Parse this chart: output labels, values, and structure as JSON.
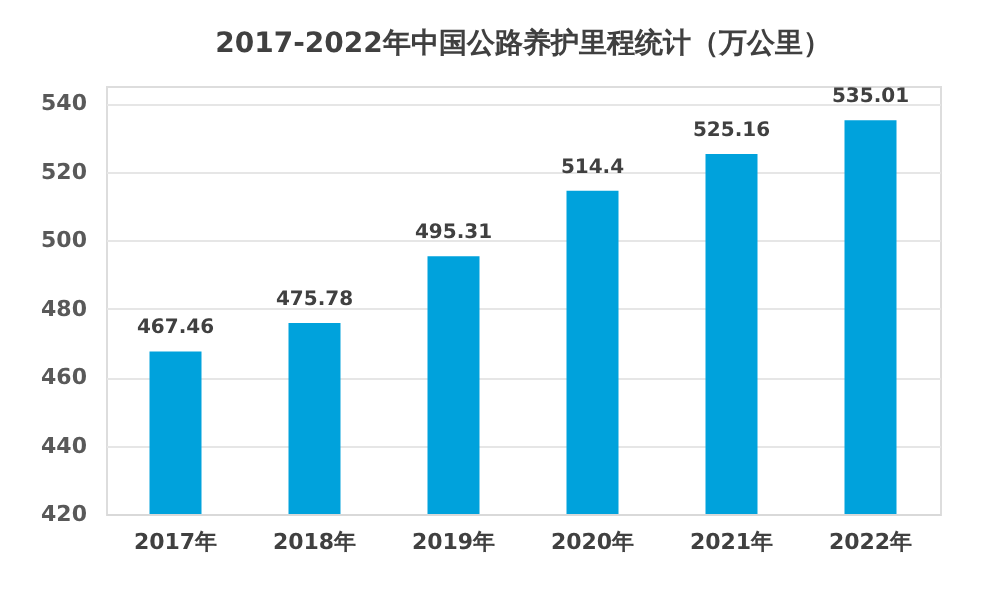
{
  "chart_data": {
    "type": "bar",
    "title": "2017-2022年中国公路养护里程统计（万公里）",
    "categories": [
      "2017年",
      "2018年",
      "2019年",
      "2020年",
      "2021年",
      "2022年"
    ],
    "values": [
      467.46,
      475.78,
      495.31,
      514.4,
      525.16,
      535.01
    ],
    "color": "#00a2dc",
    "ylim": [
      420,
      545
    ],
    "yticks": [
      420,
      440,
      460,
      480,
      500,
      520,
      540
    ],
    "grid": "y",
    "data_labels": true
  }
}
